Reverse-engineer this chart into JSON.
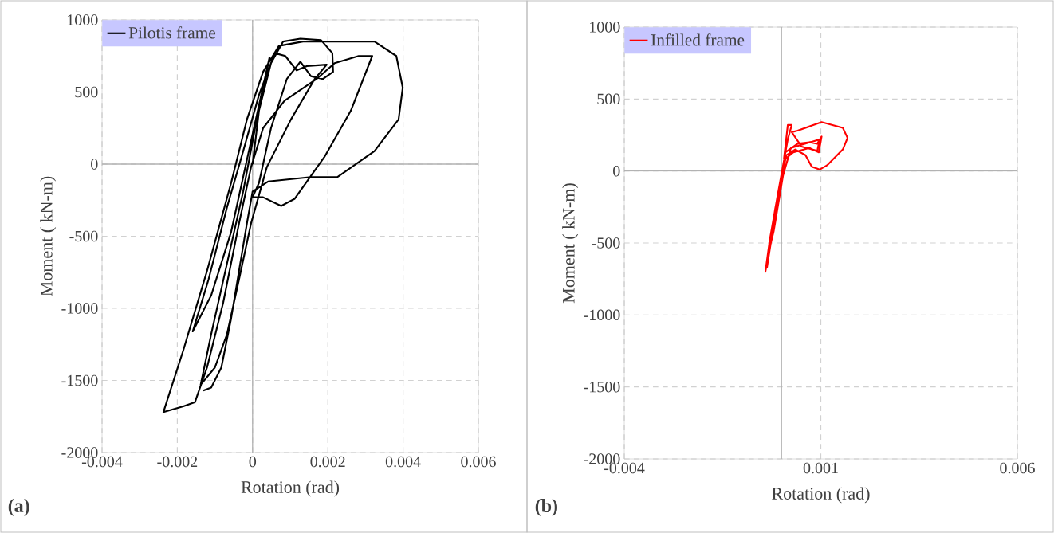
{
  "chart_data": [
    {
      "type": "line",
      "xlabel": "Rotation (rad)",
      "ylabel": "Moment ( kN-m)",
      "annotations": [
        "(a)"
      ],
      "xlim": [
        -0.004,
        0.006
      ],
      "ylim": [
        -2000,
        1000
      ],
      "xticks": [
        -0.004,
        -0.002,
        0,
        0.002,
        0.004,
        0.006
      ],
      "yticks": [
        -2000,
        -1500,
        -1000,
        -500,
        0,
        500,
        1000
      ],
      "grid": true,
      "legend": "top left",
      "series": [
        {
          "name": "Pilotis frame",
          "color": "#000000",
          "x": [
            0,
            0.00017,
            0.00045,
            0.00023,
            -0.00015,
            -0.00057,
            -0.0011,
            -0.00159,
            -0.00117,
            -0.00068,
            -0.00025,
            0.00017,
            0.00059,
            0.00087,
            0.00117,
            0.00144,
            0.00197,
            0.00165,
            0.00102,
            0.00038,
            -4e-05,
            -0.00036,
            -0.00068,
            -0.001,
            -0.00138,
            -0.0011,
            -0.00068,
            -0.00025,
            0.00011,
            0.00049,
            0.00081,
            0.00127,
            0.00182,
            0.00212,
            0.00214,
            0.00187,
            0.00155,
            0.00127,
            0.00091,
            0.00049,
            0.00017,
            0,
            0.00028,
            0.00076,
            0.00112,
            0.00191,
            0.00261,
            0.00318,
            0.00282,
            0.00218,
            0.0017,
            0.00085,
            0.00028,
            -4e-05,
            -0.00036,
            -0.00078,
            -0.00121,
            -0.00153,
            -0.00184,
            -0.00237,
            -0.00184,
            -0.00121,
            -0.00057,
            -0.00015,
            0.00028,
            0.0007,
            0.00134,
            0.0024,
            0.00324,
            0.00382,
            0.00399,
            0.00388,
            0.00324,
            0.00225,
            0.00155,
            0.00042,
            0,
            -0.00015,
            -0.00036,
            -0.00057,
            -0.00083,
            -0.0011,
            -0.00131
          ],
          "values": [
            0,
            370,
            740,
            480,
            30,
            -470,
            -910,
            -1160,
            -800,
            -300,
            90,
            480,
            770,
            750,
            650,
            680,
            690,
            590,
            310,
            -20,
            -410,
            -800,
            -1180,
            -1410,
            -1530,
            -1180,
            -690,
            -190,
            310,
            700,
            850,
            870,
            860,
            770,
            640,
            590,
            610,
            710,
            590,
            250,
            -130,
            -230,
            -230,
            -290,
            -240,
            50,
            370,
            750,
            750,
            700,
            590,
            440,
            250,
            -20,
            -410,
            -960,
            -1410,
            -1650,
            -1680,
            -1720,
            -1290,
            -740,
            -130,
            310,
            640,
            820,
            850,
            850,
            850,
            750,
            530,
            310,
            90,
            -90,
            -90,
            -120,
            -190,
            -410,
            -740,
            -1070,
            -1410,
            -1550,
            -1570
          ]
        }
      ]
    },
    {
      "type": "line",
      "xlabel": "Rotation (rad)",
      "ylabel": "Moment ( kN-m)",
      "annotations": [
        "(b)"
      ],
      "xlim": [
        -0.004,
        0.006
      ],
      "ylim": [
        -2000,
        1000
      ],
      "xticks": [
        -0.004,
        0.001,
        0.006
      ],
      "yticks": [
        -2000,
        -1500,
        -1000,
        -500,
        0,
        500,
        1000
      ],
      "grid": true,
      "legend": "top left",
      "series": [
        {
          "name": "Infilled frame",
          "color": "#ff0000",
          "x": [
            6e-05,
            0.00016,
            0.00026,
            0.00016,
            -0.0001,
            -0.0003,
            -0.00041,
            -0.00026,
            -6e-05,
            0.0001,
            0.00041,
            0.00071,
            0.00091,
            0.00102,
            0.00095,
            0.00071,
            0.0003,
            8e-05,
            -0.00016,
            -0.00035,
            -0.0002,
            4e-05,
            0.00024,
            0.00061,
            0.00097,
            0.00091,
            0.00051,
            0.00026,
            0.00041,
            0.00102,
            0.00156,
            0.00168,
            0.00156,
            0.00116,
            0.00097,
            0.00077,
            0.00061,
            0.00035,
            0.00012,
            -0.0001,
            -0.00037
          ],
          "values": [
            80,
            320,
            320,
            220,
            -170,
            -480,
            -700,
            -480,
            -140,
            130,
            190,
            200,
            190,
            240,
            130,
            160,
            130,
            80,
            -260,
            -590,
            -420,
            -30,
            160,
            190,
            220,
            140,
            170,
            270,
            280,
            340,
            300,
            230,
            150,
            40,
            10,
            30,
            110,
            150,
            110,
            -200,
            -670
          ]
        }
      ]
    }
  ]
}
